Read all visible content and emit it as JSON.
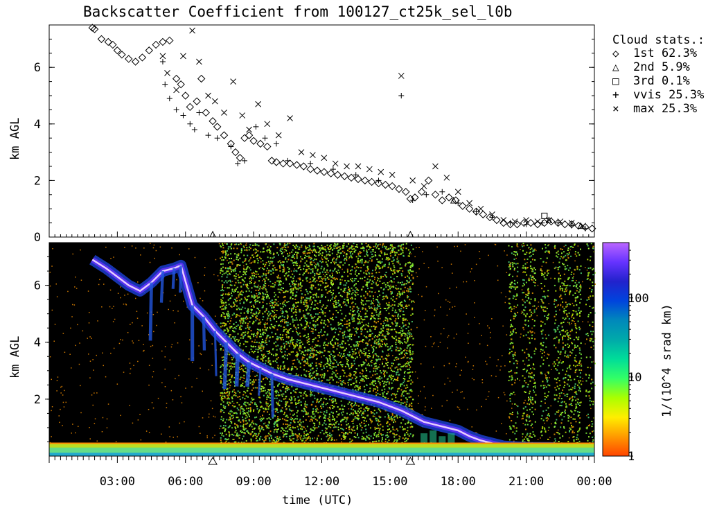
{
  "title": "Backscatter Coefficient from 100127_ct25k_sel_l0b",
  "chart_data": [
    {
      "type": "scatter",
      "ylabel": "km AGL",
      "ylim": [
        0,
        7.5
      ],
      "yticks": [
        "0",
        "2",
        "4",
        "6"
      ],
      "xlim_hours": [
        0,
        24
      ],
      "legend": {
        "title": "Cloud stats.:",
        "placement": "right",
        "items": [
          {
            "symbol": "diamond",
            "glyph": "◇",
            "label": "1st 62.3%"
          },
          {
            "symbol": "triangle",
            "glyph": "△",
            "label": "2nd  5.9%"
          },
          {
            "symbol": "square",
            "glyph": "□",
            "label": "3rd  0.1%"
          },
          {
            "symbol": "plus",
            "glyph": "+",
            "label": "vvis 25.3%"
          },
          {
            "symbol": "cross",
            "glyph": "×",
            "label": "max 25.3%"
          }
        ]
      },
      "series": [
        {
          "symbol": "diamond",
          "x": [
            1.9,
            2.0,
            2.3,
            2.6,
            2.8,
            3.0,
            3.2,
            3.5,
            3.8,
            4.1,
            4.4,
            4.7,
            5.0,
            5.3,
            5.6,
            5.8,
            6.0,
            6.2,
            6.5,
            6.7,
            6.9,
            7.2,
            7.4,
            7.7,
            8.0,
            8.2,
            8.4,
            8.6,
            8.8,
            9.0,
            9.3,
            9.6,
            9.8,
            10.0,
            10.3,
            10.6,
            10.9,
            11.2,
            11.5,
            11.8,
            12.1,
            12.4,
            12.7,
            13.0,
            13.3,
            13.6,
            13.9,
            14.2,
            14.5,
            14.8,
            15.1,
            15.4,
            15.7,
            15.9,
            16.1,
            16.4,
            16.7,
            17.0,
            17.3,
            17.6,
            17.9,
            18.2,
            18.5,
            18.8,
            19.1,
            19.4,
            19.7,
            20.0,
            20.3,
            20.6,
            20.9,
            21.2,
            21.5,
            21.8,
            22.1,
            22.4,
            22.7,
            23.0,
            23.3,
            23.6,
            23.9
          ],
          "y": [
            7.4,
            7.35,
            7.0,
            6.9,
            6.8,
            6.6,
            6.45,
            6.3,
            6.2,
            6.35,
            6.6,
            6.8,
            6.9,
            6.95,
            5.6,
            5.4,
            5.0,
            4.6,
            4.8,
            5.6,
            4.4,
            4.1,
            3.9,
            3.6,
            3.3,
            3.0,
            2.8,
            3.5,
            3.6,
            3.4,
            3.3,
            3.2,
            2.7,
            2.65,
            2.6,
            2.6,
            2.55,
            2.5,
            2.4,
            2.35,
            2.3,
            2.25,
            2.2,
            2.15,
            2.1,
            2.05,
            2.0,
            1.95,
            1.9,
            1.85,
            1.8,
            1.7,
            1.6,
            1.35,
            1.4,
            1.6,
            2.0,
            1.5,
            1.3,
            1.4,
            1.3,
            1.1,
            1.0,
            0.9,
            0.8,
            0.7,
            0.6,
            0.5,
            0.45,
            0.45,
            0.5,
            0.5,
            0.45,
            0.5,
            0.55,
            0.5,
            0.45,
            0.45,
            0.4,
            0.35,
            0.3
          ]
        },
        {
          "symbol": "triangle",
          "x": [
            7.2,
            15.9,
            17.8,
            22.0,
            23.4
          ],
          "y": [
            0.1,
            0.1,
            1.3,
            0.6,
            0.4
          ]
        },
        {
          "symbol": "square",
          "x": [
            21.8
          ],
          "y": [
            0.75
          ]
        },
        {
          "symbol": "plus",
          "x": [
            5.0,
            5.1,
            5.3,
            5.6,
            5.9,
            6.2,
            6.4,
            6.6,
            7.0,
            7.4,
            8.0,
            8.3,
            8.6,
            9.1,
            9.5,
            10.0,
            10.5,
            11.5,
            12.5,
            13.5,
            14.5,
            15.5,
            16.0,
            16.6,
            17.3,
            18.0,
            18.8,
            19.5,
            20.3,
            21.0,
            21.7,
            22.4,
            23.0,
            23.6
          ],
          "y": [
            6.2,
            5.4,
            4.9,
            4.5,
            4.3,
            4.0,
            3.8,
            4.4,
            3.6,
            3.5,
            3.2,
            2.6,
            2.7,
            3.9,
            3.5,
            3.3,
            2.7,
            2.6,
            2.4,
            2.2,
            2.0,
            5.0,
            1.3,
            1.5,
            1.6,
            1.2,
            0.9,
            0.7,
            0.5,
            0.45,
            0.5,
            0.5,
            0.4,
            0.3
          ]
        },
        {
          "symbol": "cross",
          "x": [
            5.0,
            5.2,
            5.6,
            5.9,
            6.3,
            6.6,
            7.0,
            7.3,
            7.7,
            8.1,
            8.5,
            8.8,
            9.2,
            9.6,
            10.1,
            10.6,
            11.1,
            11.6,
            12.1,
            12.6,
            13.1,
            13.6,
            14.1,
            14.6,
            15.1,
            15.5,
            16.0,
            16.5,
            17.0,
            17.5,
            18.0,
            18.5,
            19.0,
            19.5,
            20.0,
            20.5,
            21.0,
            21.5,
            22.0,
            22.5,
            23.0,
            23.5
          ],
          "y": [
            6.4,
            5.8,
            5.2,
            6.4,
            7.3,
            6.2,
            5.0,
            4.8,
            4.4,
            5.5,
            4.3,
            3.8,
            4.7,
            4.0,
            3.6,
            4.2,
            3.0,
            2.9,
            2.8,
            2.6,
            2.5,
            2.5,
            2.4,
            2.3,
            2.2,
            5.7,
            2.0,
            1.8,
            2.5,
            2.1,
            1.6,
            1.2,
            1.0,
            0.8,
            0.6,
            0.55,
            0.6,
            0.55,
            0.6,
            0.55,
            0.5,
            0.4
          ]
        }
      ]
    },
    {
      "type": "heatmap",
      "ylabel": "km AGL",
      "ylim": [
        0,
        7.5
      ],
      "yticks": [
        "2",
        "4",
        "6"
      ],
      "xlabel": "time (UTC)",
      "xlim_hours": [
        0,
        24
      ],
      "xtick_hours": [
        3,
        6,
        9,
        12,
        15,
        18,
        21,
        24
      ],
      "xtick_labels": [
        "03:00",
        "06:00",
        "09:00",
        "12:00",
        "15:00",
        "18:00",
        "21:00",
        "00:00"
      ],
      "markers_hours": [
        7.2,
        15.9
      ],
      "colorbar": {
        "label": "1/(10^4 srad km)",
        "scale": "log",
        "range": [
          1,
          500
        ],
        "ticks": [
          "1",
          "10",
          "100"
        ],
        "tick_values": [
          1,
          10,
          100
        ],
        "colors": [
          "#ff4400",
          "#ff9900",
          "#ffee00",
          "#aaff00",
          "#33ff66",
          "#00dd99",
          "#00aaaa",
          "#0088bb",
          "#0044dd",
          "#2222cc",
          "#6633ff",
          "#bb66ff"
        ]
      },
      "cloud_layer": {
        "x": [
          1.9,
          2.5,
          3.0,
          3.5,
          4.0,
          4.5,
          5.0,
          5.5,
          5.8,
          6.3,
          6.8,
          7.3,
          7.8,
          8.3,
          8.8,
          9.3,
          9.8,
          10.5,
          11.5,
          12.5,
          13.5,
          14.5,
          15.5,
          16.0,
          16.5,
          17.0,
          17.5,
          18.0,
          18.5,
          19.0,
          19.5,
          20.0,
          21.0,
          22.0,
          23.0,
          23.9
        ],
        "y": [
          6.9,
          6.6,
          6.3,
          6.0,
          5.8,
          6.1,
          6.5,
          6.6,
          6.7,
          5.3,
          4.9,
          4.4,
          4.0,
          3.6,
          3.3,
          3.1,
          2.9,
          2.7,
          2.5,
          2.3,
          2.1,
          1.9,
          1.6,
          1.4,
          1.2,
          1.1,
          1.0,
          0.9,
          0.7,
          0.55,
          0.45,
          0.35,
          0.3,
          0.3,
          0.25,
          0.2
        ]
      },
      "noise_regions": [
        {
          "from": 7.5,
          "to": 16.0,
          "density": 0.85
        },
        {
          "from": 20.2,
          "to": 20.6,
          "density": 0.6
        },
        {
          "from": 20.8,
          "to": 21.4,
          "density": 0.6
        },
        {
          "from": 21.6,
          "to": 22.0,
          "density": 0.5
        },
        {
          "from": 22.2,
          "to": 23.4,
          "density": 0.6
        },
        {
          "from": 23.6,
          "to": 24.0,
          "density": 0.4
        }
      ]
    }
  ]
}
